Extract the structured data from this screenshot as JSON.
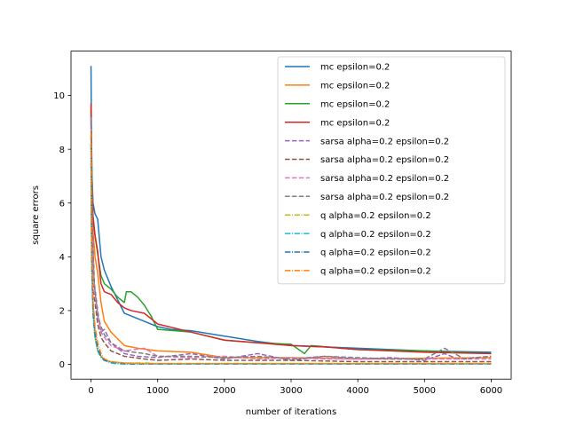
{
  "chart_data": {
    "type": "line",
    "title": "",
    "xlabel": "number of iterations",
    "ylabel": "square errors",
    "xlim": [
      -300,
      6300
    ],
    "ylim": [
      -0.55,
      11.65
    ],
    "xticks": [
      0,
      1000,
      2000,
      3000,
      4000,
      5000,
      6000
    ],
    "yticks": [
      0,
      2,
      4,
      6,
      8,
      10
    ],
    "grid": false,
    "legend_position": "upper-right",
    "series": [
      {
        "name": "mc epsilon=0.2",
        "color": "#1f77b4",
        "style": "solid",
        "x": [
          0,
          5,
          15,
          30,
          60,
          100,
          150,
          200,
          300,
          500,
          800,
          1000,
          1200,
          1500,
          2000,
          2500,
          3000,
          4000,
          5000,
          6000
        ],
        "y": [
          11.1,
          9.0,
          7.0,
          6.0,
          5.6,
          5.4,
          4.0,
          3.5,
          2.9,
          1.9,
          1.6,
          1.4,
          1.3,
          1.25,
          1.05,
          0.85,
          0.7,
          0.6,
          0.5,
          0.45
        ]
      },
      {
        "name": "mc epsilon=0.2",
        "color": "#ff7f0e",
        "style": "solid",
        "x": [
          0,
          10,
          30,
          60,
          100,
          150,
          200,
          300,
          400,
          500,
          700,
          1000,
          1500,
          2000,
          3000,
          4000,
          6000
        ],
        "y": [
          9.6,
          6.3,
          5.0,
          4.0,
          3.4,
          2.3,
          1.6,
          1.2,
          0.95,
          0.7,
          0.6,
          0.5,
          0.45,
          0.25,
          0.25,
          0.2,
          0.25
        ]
      },
      {
        "name": "mc epsilon=0.2",
        "color": "#2ca02c",
        "style": "solid",
        "x": [
          0,
          10,
          30,
          60,
          100,
          150,
          200,
          300,
          400,
          500,
          530,
          600,
          700,
          800,
          900,
          1000,
          1500,
          2000,
          2500,
          3000,
          3200,
          3300,
          4000,
          5000,
          6000
        ],
        "y": [
          9.5,
          7.5,
          5.5,
          4.8,
          4.1,
          3.3,
          3.0,
          2.8,
          2.5,
          2.3,
          2.7,
          2.7,
          2.5,
          2.2,
          1.8,
          1.3,
          1.2,
          0.9,
          0.8,
          0.75,
          0.4,
          0.7,
          0.55,
          0.5,
          0.4
        ]
      },
      {
        "name": "mc epsilon=0.2",
        "color": "#d62728",
        "style": "solid",
        "x": [
          0,
          10,
          30,
          60,
          100,
          150,
          200,
          300,
          400,
          500,
          600,
          800,
          1000,
          1500,
          2000,
          2500,
          3000,
          3500,
          4000,
          5000,
          6000
        ],
        "y": [
          9.7,
          7.0,
          5.5,
          4.8,
          4.2,
          3.0,
          2.7,
          2.6,
          2.3,
          2.1,
          2.0,
          1.9,
          1.5,
          1.2,
          0.9,
          0.8,
          0.7,
          0.65,
          0.55,
          0.45,
          0.4
        ]
      },
      {
        "name": "sarsa alpha=0.2 epsilon=0.2",
        "color": "#9467bd",
        "style": "dashed",
        "x": [
          0,
          20,
          50,
          100,
          150,
          200,
          300,
          400,
          500,
          700,
          1000,
          1500,
          2000,
          2500,
          3000,
          3500,
          4000,
          4500,
          5000,
          5300,
          5500,
          6000
        ],
        "y": [
          9.0,
          5.0,
          3.0,
          2.0,
          1.2,
          1.3,
          0.8,
          0.6,
          0.4,
          0.3,
          0.25,
          0.4,
          0.2,
          0.4,
          0.15,
          0.3,
          0.2,
          0.25,
          0.15,
          0.4,
          0.2,
          0.3
        ]
      },
      {
        "name": "sarsa alpha=0.2 epsilon=0.2",
        "color": "#8c564b",
        "style": "dashed",
        "x": [
          0,
          20,
          50,
          100,
          150,
          200,
          300,
          500,
          800,
          1000,
          1500,
          2000,
          3000,
          4000,
          5000,
          6000
        ],
        "y": [
          8.5,
          4.5,
          2.5,
          1.5,
          1.0,
          0.8,
          0.5,
          0.3,
          0.2,
          0.15,
          0.2,
          0.15,
          0.15,
          0.1,
          0.1,
          0.1
        ]
      },
      {
        "name": "sarsa alpha=0.2 epsilon=0.2",
        "color": "#e377c2",
        "style": "dashed",
        "x": [
          0,
          20,
          50,
          100,
          150,
          200,
          300,
          500,
          800,
          1000,
          1500,
          2000,
          2500,
          3000,
          3500,
          4000,
          5000,
          6000
        ],
        "y": [
          8.8,
          4.8,
          2.8,
          1.8,
          1.2,
          1.0,
          0.7,
          0.5,
          0.6,
          0.3,
          0.25,
          0.3,
          0.2,
          0.25,
          0.2,
          0.2,
          0.2,
          0.2
        ]
      },
      {
        "name": "sarsa alpha=0.2 epsilon=0.2",
        "color": "#7f7f7f",
        "style": "dashed",
        "x": [
          0,
          20,
          50,
          100,
          150,
          200,
          300,
          500,
          800,
          1000,
          1500,
          2000,
          2500,
          3000,
          3500,
          4000,
          4500,
          5000,
          5300,
          5600,
          6000
        ],
        "y": [
          9.2,
          5.0,
          3.0,
          1.8,
          1.4,
          1.1,
          0.8,
          0.5,
          0.4,
          0.3,
          0.3,
          0.25,
          0.3,
          0.2,
          0.3,
          0.25,
          0.2,
          0.2,
          0.6,
          0.2,
          0.3
        ]
      },
      {
        "name": "q alpha=0.2 epsilon=0.2",
        "color": "#bcbd22",
        "style": "dashdot",
        "x": [
          0,
          10,
          30,
          60,
          100,
          150,
          200,
          300,
          500,
          800,
          1000,
          2000,
          3000,
          4000,
          5000,
          6000
        ],
        "y": [
          8.0,
          4.0,
          2.0,
          1.0,
          0.5,
          0.3,
          0.15,
          0.1,
          0.05,
          0.05,
          0.03,
          0.03,
          0.03,
          0.03,
          0.03,
          0.03
        ]
      },
      {
        "name": "q alpha=0.2 epsilon=0.2",
        "color": "#17becf",
        "style": "dashdot",
        "x": [
          0,
          10,
          30,
          60,
          100,
          150,
          200,
          300,
          400,
          500,
          800,
          1000,
          2000,
          3000,
          4000,
          5000,
          6000
        ],
        "y": [
          7.5,
          3.5,
          1.8,
          1.0,
          0.5,
          0.25,
          0.15,
          0.05,
          0.02,
          0.01,
          0.01,
          0.01,
          0.01,
          0.01,
          0.01,
          0.01,
          0.01
        ]
      },
      {
        "name": "q alpha=0.2 epsilon=0.2",
        "color": "#1f77b4",
        "style": "dashdot",
        "x": [
          0,
          10,
          30,
          60,
          100,
          150,
          200,
          300,
          500,
          800,
          1000,
          2000,
          3000,
          4000,
          5000,
          6000
        ],
        "y": [
          8.2,
          4.2,
          2.2,
          1.2,
          0.6,
          0.3,
          0.15,
          0.08,
          0.03,
          0.02,
          0.02,
          0.02,
          0.02,
          0.02,
          0.02,
          0.02
        ]
      },
      {
        "name": "q alpha=0.2 epsilon=0.2",
        "color": "#ff7f0e",
        "style": "dashdot",
        "x": [
          0,
          10,
          30,
          60,
          100,
          150,
          200,
          300,
          500,
          800,
          1000,
          2000,
          3000,
          4000,
          5000,
          6000
        ],
        "y": [
          8.6,
          4.4,
          2.4,
          1.4,
          0.8,
          0.4,
          0.2,
          0.1,
          0.05,
          0.03,
          0.03,
          0.03,
          0.03,
          0.03,
          0.03,
          0.03
        ]
      }
    ]
  }
}
